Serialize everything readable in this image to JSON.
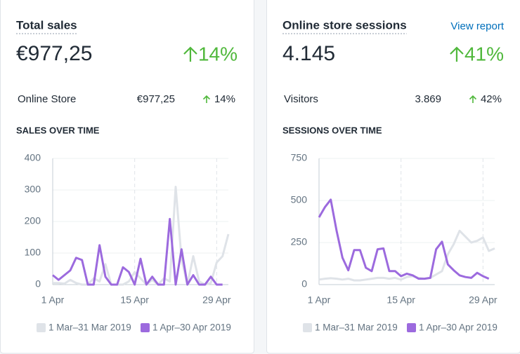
{
  "cards": [
    {
      "title": "Total sales",
      "value": "€977,25",
      "change": "14%",
      "breakdown": {
        "label": "Online Store",
        "value": "€977,25",
        "change": "14%"
      },
      "chart": {
        "type": "line",
        "title": "SALES OVER TIME",
        "x": [
          1,
          2,
          3,
          4,
          5,
          6,
          7,
          8,
          9,
          10,
          11,
          12,
          13,
          14,
          15,
          16,
          17,
          18,
          19,
          20,
          21,
          22,
          23,
          24,
          25,
          26,
          27,
          28,
          29,
          30,
          31
        ],
        "xlim": [
          1,
          31
        ],
        "xticks": [
          {
            "value": 1,
            "label": "1 Apr"
          },
          {
            "value": 15,
            "label": "15 Apr"
          },
          {
            "value": 29,
            "label": "29 Apr"
          }
        ],
        "ylim": [
          0,
          400
        ],
        "yticks": [
          0,
          100,
          200,
          300,
          400
        ],
        "series": [
          {
            "name": "1 Mar–31 Mar 2019",
            "color": "#dfe3e8",
            "values": [
              5,
              5,
              3,
              15,
              5,
              0,
              0,
              20,
              10,
              65,
              0,
              0,
              0,
              10,
              40,
              20,
              0,
              15,
              0,
              20,
              10,
              310,
              80,
              0,
              90,
              10,
              0,
              5,
              70,
              90,
              160
            ]
          },
          {
            "name": "1 Apr–30 Apr 2019",
            "color": "#9c6ade",
            "values": [
              30,
              15,
              30,
              45,
              85,
              78,
              0,
              0,
              125,
              25,
              0,
              0,
              55,
              40,
              0,
              82,
              0,
              25,
              0,
              0,
              208,
              0,
              112,
              0,
              30,
              0,
              0,
              25,
              0,
              0,
              null
            ]
          }
        ]
      }
    },
    {
      "title": "Online store sessions",
      "link": "View report",
      "value": "4.145",
      "change": "41%",
      "breakdown": {
        "label": "Visitors",
        "value": "3.869",
        "change": "42%"
      },
      "chart": {
        "type": "line",
        "title": "SESSIONS OVER TIME",
        "x": [
          1,
          2,
          3,
          4,
          5,
          6,
          7,
          8,
          9,
          10,
          11,
          12,
          13,
          14,
          15,
          16,
          17,
          18,
          19,
          20,
          21,
          22,
          23,
          24,
          25,
          26,
          27,
          28,
          29,
          30,
          31
        ],
        "xlim": [
          1,
          31
        ],
        "xticks": [
          {
            "value": 1,
            "label": "1 Apr"
          },
          {
            "value": 15,
            "label": "15 Apr"
          },
          {
            "value": 29,
            "label": "29 Apr"
          }
        ],
        "ylim": [
          0,
          750
        ],
        "yticks": [
          0,
          250,
          500,
          750
        ],
        "series": [
          {
            "name": "1 Mar–31 Mar 2019",
            "color": "#dfe3e8",
            "values": [
              30,
              35,
              38,
              35,
              30,
              35,
              25,
              25,
              30,
              35,
              40,
              40,
              35,
              40,
              30,
              45,
              50,
              40,
              35,
              40,
              60,
              80,
              180,
              240,
              320,
              285,
              250,
              260,
              280,
              200,
              215
            ]
          },
          {
            "name": "1 Apr–30 Apr 2019",
            "color": "#9c6ade",
            "values": [
              400,
              460,
              505,
              320,
              160,
              85,
              205,
              205,
              100,
              80,
              210,
              215,
              80,
              80,
              50,
              65,
              55,
              35,
              35,
              40,
              210,
              255,
              120,
              85,
              55,
              45,
              40,
              70,
              50,
              35,
              null
            ]
          }
        ]
      }
    }
  ]
}
